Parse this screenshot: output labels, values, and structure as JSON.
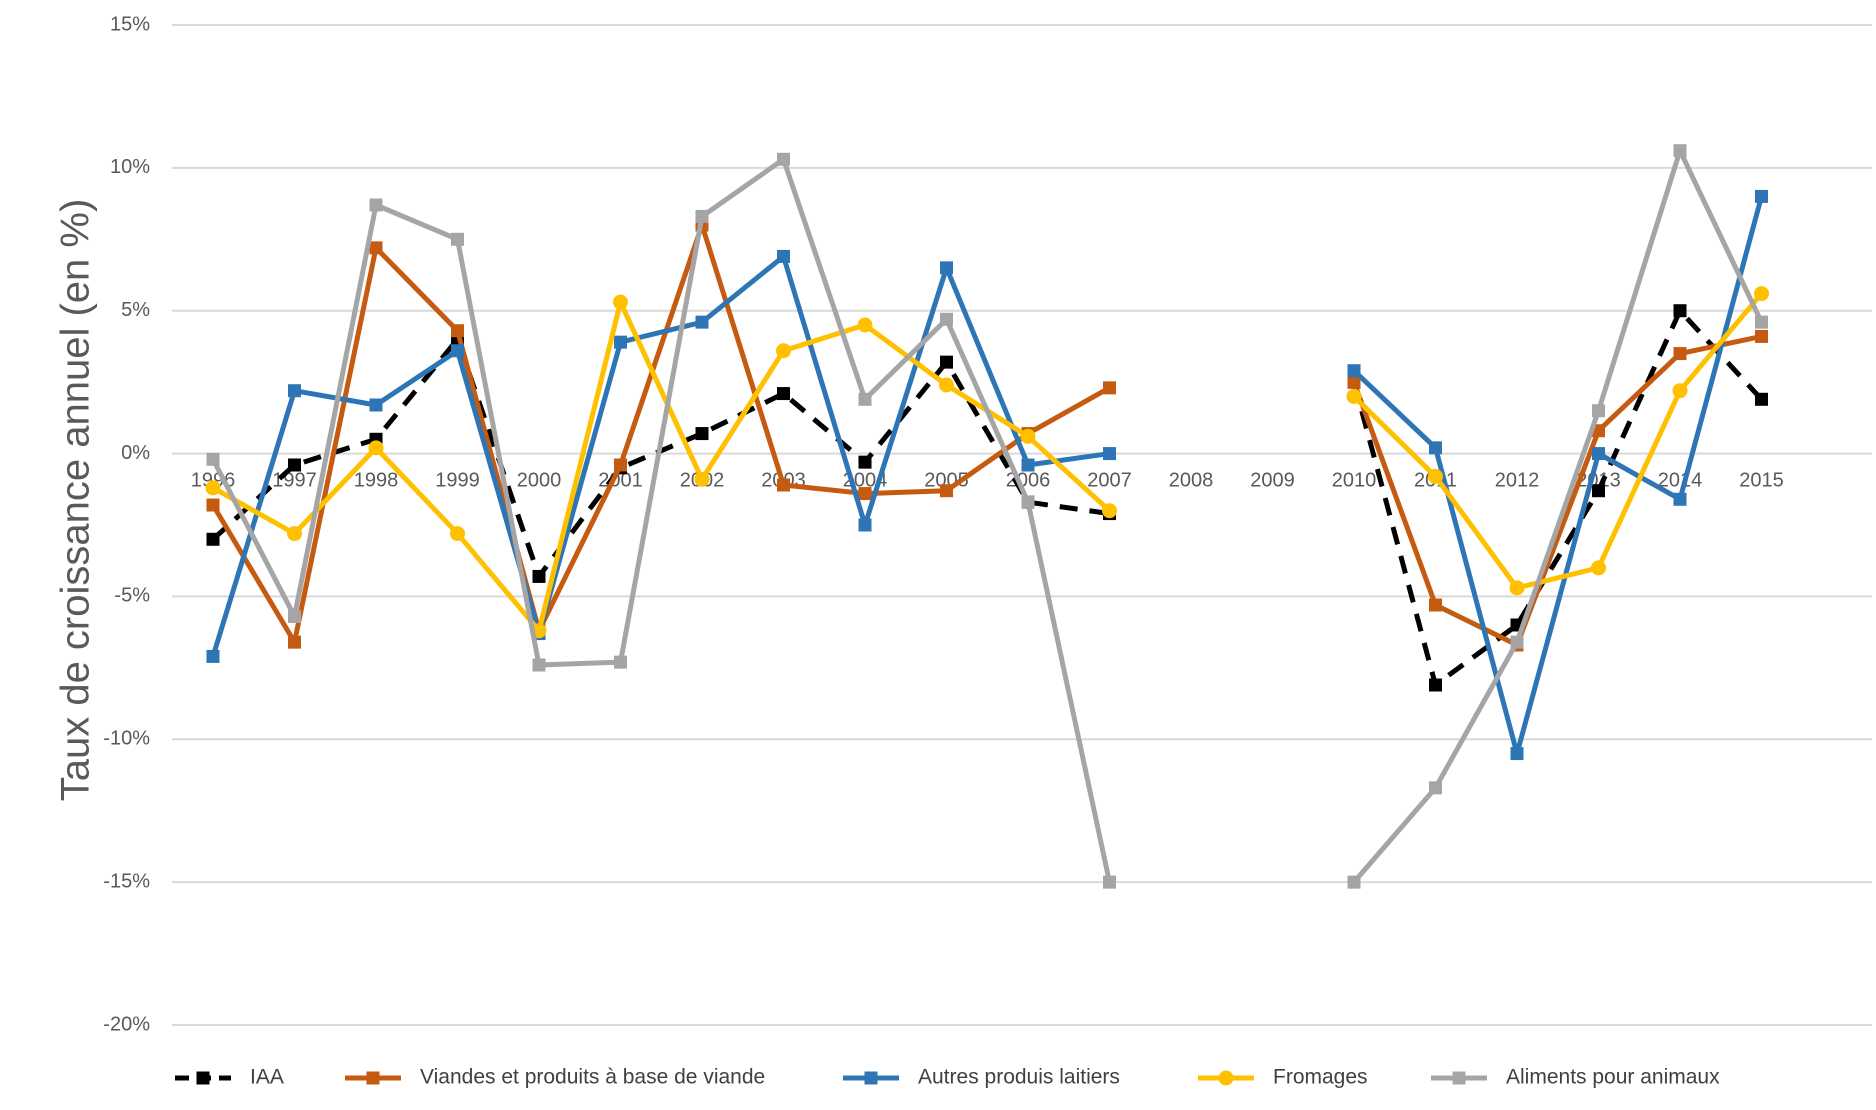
{
  "chart_data": {
    "type": "line",
    "ylabel": "Taux de croissance annuel (en %)",
    "xlabel": "",
    "title": "",
    "ylim": [
      -20,
      15
    ],
    "yticks": [
      15,
      10,
      5,
      0,
      -5,
      -10,
      -15,
      -20
    ],
    "ytick_labels": [
      "15%",
      "10%",
      "5%",
      "0%",
      "-5%",
      "-10%",
      "-15%",
      "-20%"
    ],
    "categories": [
      "1996",
      "1997",
      "1998",
      "1999",
      "2000",
      "2001",
      "2002",
      "2003",
      "2004",
      "2005",
      "2006",
      "2007",
      "2008",
      "2009",
      "2010",
      "2011",
      "2012",
      "2013",
      "2014",
      "2015"
    ],
    "grid": true,
    "legend_position": "bottom",
    "series": [
      {
        "name": "IAA",
        "color": "#000000",
        "dashed": true,
        "marker": "square",
        "values": [
          -3.0,
          -0.4,
          0.5,
          4.0,
          -4.3,
          -0.5,
          0.7,
          2.1,
          -0.3,
          3.2,
          -1.7,
          -2.1,
          null,
          null,
          2.5,
          -8.1,
          -6.0,
          -1.3,
          5.0,
          1.9
        ]
      },
      {
        "name": "Viandes et produits à base de viande",
        "color": "#c55a11",
        "dashed": false,
        "marker": "square",
        "values": [
          -1.8,
          -6.6,
          7.2,
          4.3,
          -6.2,
          -0.4,
          8.0,
          -1.1,
          -1.4,
          -1.3,
          0.7,
          2.3,
          null,
          null,
          2.5,
          -5.3,
          -6.7,
          0.8,
          3.5,
          4.1
        ]
      },
      {
        "name": "Autres produis laitiers",
        "color": "#2e75b6",
        "dashed": false,
        "marker": "square",
        "values": [
          -7.1,
          2.2,
          1.7,
          3.6,
          -6.3,
          3.9,
          4.6,
          6.9,
          -2.5,
          6.5,
          -0.4,
          0.0,
          null,
          null,
          2.9,
          0.2,
          -10.5,
          0.0,
          -1.6,
          9.0
        ]
      },
      {
        "name": "Fromages",
        "color": "#ffc000",
        "dashed": false,
        "marker": "circle",
        "values": [
          -1.2,
          -2.8,
          0.2,
          -2.8,
          -6.2,
          5.3,
          -0.9,
          3.6,
          4.5,
          2.4,
          0.6,
          -2.0,
          null,
          null,
          2.0,
          -0.8,
          -4.7,
          -4.0,
          2.2,
          5.6
        ]
      },
      {
        "name": "Aliments pour animaux",
        "color": "#a5a5a5",
        "dashed": false,
        "marker": "square",
        "values": [
          -0.2,
          -5.7,
          8.7,
          7.5,
          -7.4,
          -7.3,
          8.3,
          10.3,
          1.9,
          4.7,
          -1.7,
          -15.0,
          null,
          null,
          -15.0,
          -11.7,
          -6.6,
          1.5,
          10.6,
          4.6
        ]
      }
    ]
  }
}
